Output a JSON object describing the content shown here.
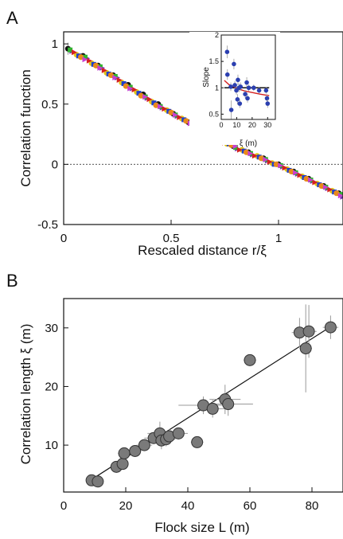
{
  "panels": {
    "a": {
      "letter": "A"
    },
    "b": {
      "letter": "B"
    }
  },
  "chart_data": [
    {
      "id": "A",
      "type": "scatter",
      "title": "",
      "xlabel": "Rescaled distance r/ξ",
      "ylabel": "Correlation function",
      "xlim": [
        0,
        1.3
      ],
      "ylim": [
        -0.5,
        1.1
      ],
      "xticks": [
        0,
        0.5,
        1
      ],
      "xtick_labels": [
        "0",
        "0.5",
        "1"
      ],
      "yticks": [
        -0.5,
        0,
        0.5,
        1
      ],
      "ytick_labels": [
        "-0.5",
        "0",
        "0.5",
        "1"
      ],
      "reference_line": {
        "y": 0,
        "style": "dotted"
      },
      "series_colors": [
        "#111111",
        "#7a2fb5",
        "#2fb52f",
        "#e3c619",
        "#d42020",
        "#1f3fcc",
        "#e88a1a",
        "#c93fd1"
      ],
      "series": [
        {
          "color": "#111111",
          "x": [
            0.02,
            0.09,
            0.16,
            0.23,
            0.3,
            0.37,
            0.44,
            0.51,
            0.58,
            0.65,
            0.72,
            0.79,
            0.86,
            0.93,
            1.0,
            1.07,
            1.14,
            1.21,
            1.28
          ],
          "y": [
            0.96,
            0.9,
            0.82,
            0.74,
            0.66,
            0.58,
            0.5,
            0.42,
            0.35,
            0.28,
            0.21,
            0.15,
            0.1,
            0.05,
            0.0,
            -0.06,
            -0.12,
            -0.18,
            -0.24
          ]
        },
        {
          "color": "#7a2fb5",
          "x": [
            0.04,
            0.11,
            0.18,
            0.25,
            0.32,
            0.39,
            0.46,
            0.53,
            0.6,
            0.67,
            0.74,
            0.81,
            0.88,
            0.95,
            1.02,
            1.09,
            1.16,
            1.23,
            1.3
          ],
          "y": [
            0.94,
            0.88,
            0.8,
            0.72,
            0.63,
            0.55,
            0.47,
            0.4,
            0.33,
            0.26,
            0.19,
            0.13,
            0.08,
            0.03,
            -0.02,
            -0.08,
            -0.14,
            -0.2,
            -0.27
          ]
        },
        {
          "color": "#2fb52f",
          "x": [
            0.03,
            0.1,
            0.17,
            0.24,
            0.31,
            0.38,
            0.45,
            0.52,
            0.59,
            0.66,
            0.73,
            0.8,
            0.87,
            0.94,
            1.01,
            1.08,
            1.15,
            1.22,
            1.29
          ],
          "y": [
            0.95,
            0.89,
            0.81,
            0.73,
            0.64,
            0.56,
            0.48,
            0.41,
            0.34,
            0.27,
            0.2,
            0.14,
            0.09,
            0.04,
            -0.01,
            -0.07,
            -0.13,
            -0.19,
            -0.25
          ]
        },
        {
          "color": "#e3c619",
          "x": [
            0.06,
            0.13,
            0.2,
            0.27,
            0.34,
            0.41,
            0.48,
            0.55,
            0.62,
            0.69,
            0.76,
            0.83,
            0.9,
            0.97,
            1.04,
            1.11,
            1.18,
            1.25
          ],
          "y": [
            0.91,
            0.84,
            0.76,
            0.68,
            0.6,
            0.52,
            0.45,
            0.38,
            0.31,
            0.24,
            0.17,
            0.12,
            0.07,
            0.01,
            -0.04,
            -0.1,
            -0.16,
            -0.22
          ]
        },
        {
          "color": "#d42020",
          "x": [
            0.05,
            0.12,
            0.19,
            0.26,
            0.33,
            0.4,
            0.47,
            0.54,
            0.61,
            0.68,
            0.75,
            0.82,
            0.89,
            0.96,
            1.03,
            1.1,
            1.17,
            1.24
          ],
          "y": [
            0.93,
            0.86,
            0.78,
            0.7,
            0.62,
            0.54,
            0.46,
            0.39,
            0.32,
            0.25,
            0.18,
            0.12,
            0.07,
            0.02,
            -0.03,
            -0.09,
            -0.15,
            -0.21
          ]
        },
        {
          "color": "#1f3fcc",
          "x": [
            0.07,
            0.14,
            0.21,
            0.28,
            0.35,
            0.42,
            0.49,
            0.56,
            0.63,
            0.7,
            0.77,
            0.84,
            0.91,
            0.98,
            1.05,
            1.12,
            1.19,
            1.26
          ],
          "y": [
            0.9,
            0.83,
            0.75,
            0.67,
            0.59,
            0.51,
            0.44,
            0.37,
            0.3,
            0.23,
            0.17,
            0.11,
            0.06,
            0.0,
            -0.05,
            -0.11,
            -0.17,
            -0.23
          ]
        },
        {
          "color": "#e88a1a",
          "x": [
            0.08,
            0.15,
            0.22,
            0.29,
            0.36,
            0.43,
            0.5,
            0.57,
            0.64,
            0.71,
            0.78,
            0.85,
            0.92,
            0.99,
            1.06,
            1.13,
            1.2,
            1.27
          ],
          "y": [
            0.89,
            0.82,
            0.74,
            0.65,
            0.57,
            0.49,
            0.43,
            0.36,
            0.29,
            0.22,
            0.16,
            0.1,
            0.05,
            0.0,
            -0.06,
            -0.12,
            -0.18,
            -0.24
          ]
        },
        {
          "color": "#c93fd1",
          "x": [
            0.1,
            0.17,
            0.24,
            0.31,
            0.38,
            0.45,
            0.52,
            0.59,
            0.66,
            0.73,
            0.8,
            0.87,
            0.94,
            1.01,
            1.08,
            1.15,
            1.22,
            1.29
          ],
          "y": [
            0.87,
            0.8,
            0.72,
            0.63,
            0.56,
            0.48,
            0.41,
            0.34,
            0.27,
            0.21,
            0.15,
            0.09,
            0.04,
            -0.01,
            -0.07,
            -0.13,
            -0.19,
            -0.26
          ]
        }
      ],
      "first_point_error": {
        "x": 0.02,
        "y": 0.96,
        "err": 0.05
      }
    },
    {
      "id": "A-inset",
      "type": "scatter",
      "title": "",
      "xlabel": "ξ (m)",
      "ylabel": "Slope",
      "xlim": [
        0,
        35
      ],
      "ylim": [
        0.4,
        2
      ],
      "xticks": [
        0,
        10,
        20,
        30
      ],
      "xtick_labels": [
        "0",
        "10",
        "20",
        "30"
      ],
      "yticks": [
        0.5,
        1,
        1.5,
        2
      ],
      "ytick_labels": [
        "0.5",
        "1",
        "1.5",
        "2"
      ],
      "marker_color": "#2b3fb0",
      "points": [
        {
          "x": 3.8,
          "y": 1.68,
          "err": 0.12
        },
        {
          "x": 4.0,
          "y": 1.25,
          "err": 0.1
        },
        {
          "x": 6.2,
          "y": 1.02,
          "err": 0.08
        },
        {
          "x": 6.5,
          "y": 0.58,
          "err": 0.18
        },
        {
          "x": 8.2,
          "y": 1.45,
          "err": 0.1
        },
        {
          "x": 8.8,
          "y": 1.05,
          "err": 0.08
        },
        {
          "x": 9.8,
          "y": 0.95,
          "err": 0.08
        },
        {
          "x": 10.5,
          "y": 0.78,
          "err": 0.1
        },
        {
          "x": 10.8,
          "y": 1.15,
          "err": 0.1
        },
        {
          "x": 11.5,
          "y": 1.0,
          "err": 0.08
        },
        {
          "x": 12.0,
          "y": 0.7,
          "err": 0.08
        },
        {
          "x": 12.5,
          "y": 1.02,
          "err": 0.08
        },
        {
          "x": 15.5,
          "y": 0.88,
          "err": 0.08
        },
        {
          "x": 16.5,
          "y": 1.1,
          "err": 0.1
        },
        {
          "x": 17.0,
          "y": 0.8,
          "err": 0.08
        },
        {
          "x": 17.8,
          "y": 1.0,
          "err": 0.06
        },
        {
          "x": 21.0,
          "y": 1.0,
          "err": 0.06
        },
        {
          "x": 24.5,
          "y": 0.95,
          "err": 0.06
        },
        {
          "x": 29.0,
          "y": 0.95,
          "err": 0.06
        },
        {
          "x": 29.6,
          "y": 0.8,
          "err": 0.08
        },
        {
          "x": 30.0,
          "y": 0.7,
          "err": 0.08
        }
      ],
      "lines": [
        {
          "color": "#111111",
          "x": [
            2,
            31
          ],
          "y": [
            1.0,
            1.0
          ]
        },
        {
          "color": "#d42020",
          "x": [
            2,
            5,
            10,
            15,
            20,
            25,
            31
          ],
          "y": [
            1.14,
            1.06,
            0.99,
            0.94,
            0.91,
            0.88,
            0.85
          ]
        }
      ]
    },
    {
      "id": "B",
      "type": "scatter",
      "title": "",
      "xlabel": "Flock size L (m)",
      "ylabel": "Correlation length ξ (m)",
      "xlim": [
        0,
        90
      ],
      "ylim": [
        2,
        35
      ],
      "xticks": [
        0,
        20,
        40,
        60,
        80
      ],
      "xtick_labels": [
        "0",
        "20",
        "40",
        "60",
        "80"
      ],
      "yticks": [
        10,
        20,
        30
      ],
      "ytick_labels": [
        "10",
        "20",
        "30"
      ],
      "marker_color": "#7a7a7a",
      "fit_line": {
        "x": [
          8,
          86
        ],
        "y": [
          3.8,
          30.2
        ]
      },
      "points": [
        {
          "x": 9,
          "y": 4.0,
          "xerr": 1.0,
          "yerr": 0.5
        },
        {
          "x": 11,
          "y": 3.8,
          "xerr": 1.0,
          "yerr": 0.5
        },
        {
          "x": 17,
          "y": 6.3,
          "xerr": 1.5,
          "yerr": 0.6
        },
        {
          "x": 19,
          "y": 6.8,
          "xerr": 1.5,
          "yerr": 0.7
        },
        {
          "x": 19.5,
          "y": 8.6,
          "xerr": 2.0,
          "yerr": 0.8
        },
        {
          "x": 23,
          "y": 9.0,
          "xerr": 2.0,
          "yerr": 0.8
        },
        {
          "x": 26,
          "y": 10.0,
          "xerr": 2.5,
          "yerr": 0.9
        },
        {
          "x": 29,
          "y": 11.2,
          "xerr": 3.0,
          "yerr": 1.0
        },
        {
          "x": 31,
          "y": 12.0,
          "xerr": 4.0,
          "yerr": 2.0
        },
        {
          "x": 31.5,
          "y": 10.8,
          "xerr": 3.0,
          "yerr": 1.5
        },
        {
          "x": 33,
          "y": 11.0,
          "xerr": 3.0,
          "yerr": 1.2
        },
        {
          "x": 34,
          "y": 11.5,
          "xerr": 3.0,
          "yerr": 1.2
        },
        {
          "x": 37,
          "y": 12.0,
          "xerr": 3.0,
          "yerr": 1.0
        },
        {
          "x": 43,
          "y": 10.5,
          "xerr": 2.0,
          "yerr": 1.0
        },
        {
          "x": 45,
          "y": 16.8,
          "xerr": 8.0,
          "yerr": 1.5
        },
        {
          "x": 48,
          "y": 16.2,
          "xerr": 5.0,
          "yerr": 1.5
        },
        {
          "x": 52,
          "y": 17.8,
          "xerr": 5.0,
          "yerr": 2.5
        },
        {
          "x": 53,
          "y": 17.0,
          "xerr": 8.0,
          "yerr": 2.0
        },
        {
          "x": 60,
          "y": 24.5,
          "xerr": 2.0,
          "yerr": 1.0
        },
        {
          "x": 76,
          "y": 29.2,
          "xerr": 2.5,
          "yerr": 2.5
        },
        {
          "x": 79,
          "y": 29.4,
          "xerr": 2.5,
          "yerr": 4.5
        },
        {
          "x": 78,
          "y": 26.5,
          "xerr": 2.0,
          "yerr": 7.5
        },
        {
          "x": 86,
          "y": 30.1,
          "xerr": 2.5,
          "yerr": 2.0
        }
      ]
    }
  ]
}
